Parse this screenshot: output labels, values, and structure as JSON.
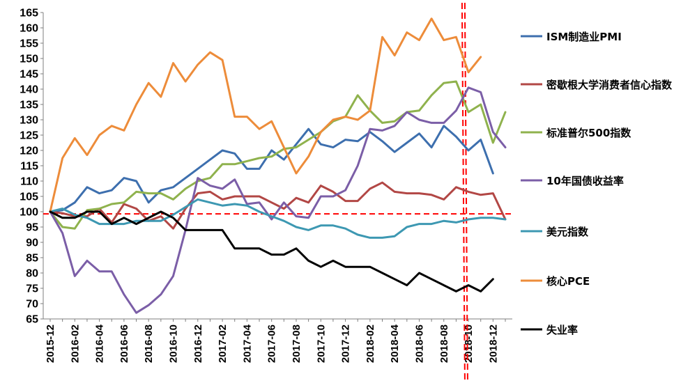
{
  "chart_data": {
    "type": "line",
    "title": "",
    "xlabel": "",
    "ylabel": "",
    "ylim": [
      65,
      165
    ],
    "yticks": [
      65,
      70,
      75,
      80,
      85,
      90,
      95,
      100,
      105,
      110,
      115,
      120,
      125,
      130,
      135,
      140,
      145,
      150,
      155,
      160,
      165
    ],
    "x": [
      "2015-12",
      "2016-01",
      "2016-02",
      "2016-03",
      "2016-04",
      "2016-05",
      "2016-06",
      "2016-07",
      "2016-08",
      "2016-09",
      "2016-10",
      "2016-11",
      "2016-12",
      "2017-01",
      "2017-02",
      "2017-03",
      "2017-04",
      "2017-05",
      "2017-06",
      "2017-07",
      "2017-08",
      "2017-09",
      "2017-10",
      "2017-11",
      "2017-12",
      "2018-01",
      "2018-02",
      "2018-03",
      "2018-04",
      "2018-05",
      "2018-06",
      "2018-07",
      "2018-08",
      "2018-09",
      "2018-10",
      "2018-11",
      "2018-12",
      "2019-01"
    ],
    "xtick_labels": [
      "2015-12",
      "2016-02",
      "2016-04",
      "2016-06",
      "2016-08",
      "2016-10",
      "2016-12",
      "2017-02",
      "2017-04",
      "2017-06",
      "2017-08",
      "2017-10",
      "2017-12",
      "2018-02",
      "2018-04",
      "2018-06",
      "2018-08",
      "2018-10",
      "2018-12"
    ],
    "reference_line": {
      "y": 99.3,
      "color": "#ff0000",
      "style": "dashed"
    },
    "vertical_marker": {
      "x": "2018-09",
      "color": "#ff0000",
      "style": "dashed"
    },
    "series": [
      {
        "name": "ISM制造业PMI",
        "color": "#3d6fae",
        "values": [
          100,
          100.5,
          103,
          108,
          106,
          107,
          111,
          110,
          103,
          107,
          108,
          111,
          114,
          117,
          120,
          119,
          114,
          114,
          120,
          117,
          122,
          127,
          122,
          121,
          123.5,
          123,
          126,
          123,
          119.5,
          122.5,
          125.5,
          121,
          128,
          124.5,
          120,
          123.5,
          112.5,
          null
        ]
      },
      {
        "name": "密歇根大学消费者信心指数",
        "color": "#b24745",
        "values": [
          100,
          99.5,
          98.5,
          98.5,
          101,
          96.5,
          102.5,
          101,
          97,
          98.5,
          94.5,
          101,
          106,
          106.5,
          104,
          105,
          105,
          105,
          103,
          101,
          104.5,
          103,
          108.5,
          106.5,
          103.5,
          103.5,
          107.5,
          109.5,
          106.5,
          106,
          106,
          105.5,
          104,
          108,
          106.5,
          105.5,
          106,
          97.5
        ]
      },
      {
        "name": "标准普尔500指数",
        "color": "#8fb24d",
        "values": [
          100,
          95,
          94.5,
          100.5,
          101,
          102.5,
          103,
          106.5,
          106,
          106,
          104,
          107.5,
          110,
          111,
          115.5,
          115.5,
          116.5,
          117.5,
          118,
          120.5,
          121,
          123.5,
          126,
          129.5,
          131,
          138,
          133,
          129,
          129.5,
          132.5,
          133,
          138,
          142,
          142.5,
          132.5,
          135,
          122.5,
          132.5
        ]
      },
      {
        "name": "10年国债收益率",
        "color": "#7b5ea7",
        "values": [
          100,
          93,
          79,
          84,
          80.5,
          80.5,
          73,
          67,
          69.5,
          73,
          79,
          94,
          111,
          108.5,
          107.5,
          110.5,
          102.5,
          103,
          97.5,
          103,
          98.5,
          98,
          105,
          105,
          107,
          115,
          127,
          126.5,
          128,
          132.5,
          130,
          129,
          129,
          133,
          140.5,
          139,
          126,
          121
        ]
      },
      {
        "name": "美元指数",
        "color": "#3d98b2",
        "values": [
          100,
          101,
          99,
          98,
          96,
          96,
          96,
          97,
          97,
          97,
          99,
          101.5,
          104,
          103,
          102,
          102.5,
          102,
          100,
          98.5,
          97,
          95,
          94,
          95.5,
          95.5,
          94.5,
          92.5,
          91.5,
          91.5,
          92,
          95,
          96,
          96,
          97,
          96.5,
          97.5,
          98,
          98,
          97.5
        ]
      },
      {
        "name": "核心PCE",
        "color": "#ed8c3a",
        "values": [
          100,
          117.5,
          124,
          118.5,
          125,
          128,
          126.5,
          135,
          142,
          137.5,
          148.5,
          142.5,
          148,
          152,
          149.5,
          131,
          131,
          127,
          129.5,
          121,
          112.5,
          118,
          126,
          130,
          131,
          130,
          133,
          157,
          151,
          158.5,
          156,
          163,
          156,
          157,
          145.5,
          150.5,
          null,
          null
        ]
      },
      {
        "name": "失业率",
        "color": "#000000",
        "values": [
          100,
          98,
          98,
          100,
          100,
          96,
          98,
          96,
          98,
          100,
          98,
          94,
          94,
          94,
          94,
          88,
          88,
          88,
          86,
          86,
          88,
          84,
          82,
          84,
          82,
          82,
          82,
          80,
          78,
          76,
          80,
          78,
          76,
          74,
          76,
          74,
          78,
          null
        ]
      }
    ]
  }
}
